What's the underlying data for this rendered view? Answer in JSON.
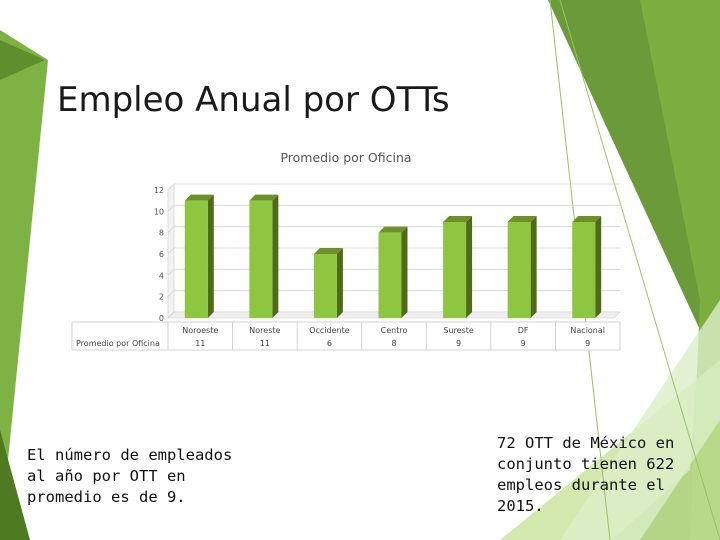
{
  "slide": {
    "title": "Empleo  Anual por OTTs",
    "left_text": "El número de empleados al año por OTT en promedio es de 9.",
    "right_text": "72  OTT de México en conjunto tienen 622 empleos durante el 2015."
  },
  "colors": {
    "bar_front": "#8DC63F",
    "bar_side": "#4F6B1A",
    "bar_top": "#6E8F2A",
    "deco_dark": "#6A9A3A",
    "deco_light": "#C8E39A"
  },
  "chart_data": {
    "type": "bar",
    "title": "Promedio por Oficina",
    "categories": [
      "Noroeste",
      "Noreste",
      "Occidente",
      "Centro",
      "Sureste",
      "DF",
      "Nacional"
    ],
    "series": [
      {
        "name": "Promedio por Oficina",
        "values": [
          11,
          11,
          6,
          8,
          9,
          9,
          9
        ]
      }
    ],
    "ylim": [
      0,
      12
    ],
    "yticks": [
      0,
      2,
      4,
      6,
      8,
      10,
      12
    ],
    "data_table": true
  }
}
